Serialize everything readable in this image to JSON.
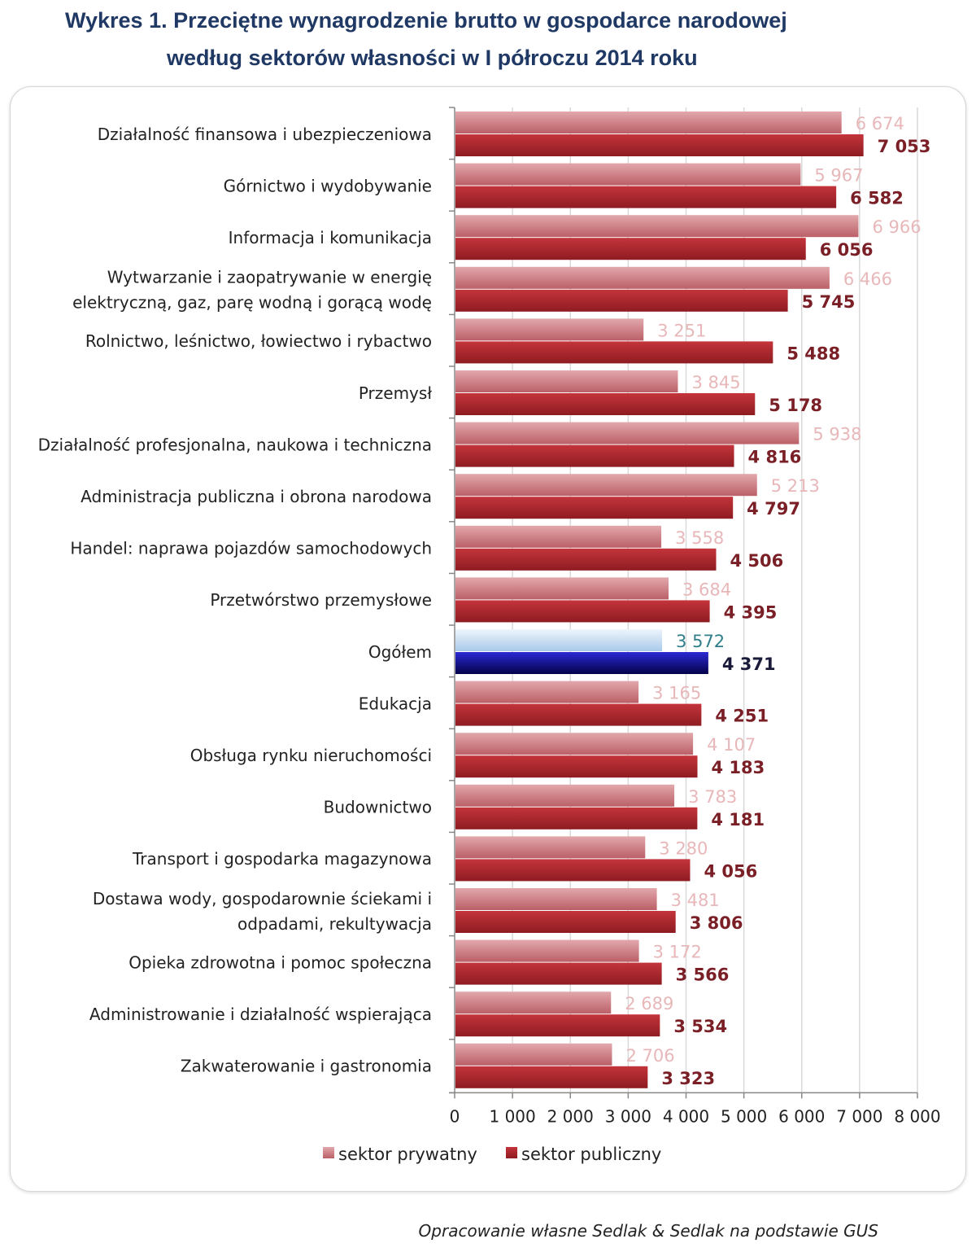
{
  "title_line1": "Wykres 1. Przeciętne wynagrodzenie brutto w gospodarce narodowej",
  "title_line2": "według sektorów własności w I półroczu 2014 roku",
  "footer": "Opracowanie własne Sedlak & Sedlak na podstawie GUS",
  "chart_data": {
    "type": "bar",
    "orientation": "horizontal",
    "title": "Wykres 1. Przeciętne wynagrodzenie brutto w gospodarce narodowej według sektorów własności w I półroczu 2014 roku",
    "categories": [
      [
        "Działalność finansowa i ubezpieczeniowa"
      ],
      [
        "Górnictwo i wydobywanie"
      ],
      [
        "Informacja i komunikacja"
      ],
      [
        "Wytwarzanie i zaopatrywanie  w energię",
        "elektryczną, gaz, parę wodną i gorącą wodę"
      ],
      [
        "Rolnictwo, leśnictwo, łowiectwo  i rybactwo"
      ],
      [
        "Przemysł"
      ],
      [
        "Działalność  profesjonalna, naukowa i techniczna"
      ],
      [
        "Administracja publiczna i obrona narodowa"
      ],
      [
        "Handel: naprawa pojazdów  samochodowych"
      ],
      [
        "Przetwórstwo przemysłowe"
      ],
      [
        "Ogółem"
      ],
      [
        "Edukacja"
      ],
      [
        "Obsługa rynku nieruchomości"
      ],
      [
        "Budownictwo"
      ],
      [
        "Transport i gospodarka magazynowa"
      ],
      [
        "Dostawa wody, gospodarownie ściekami i",
        "odpadami, rekultywacja"
      ],
      [
        "Opieka zdrowotna i pomoc społeczna"
      ],
      [
        "Administrowanie i działalność  wspierająca"
      ],
      [
        "Zakwaterowanie  i gastronomia"
      ]
    ],
    "series": [
      {
        "name": "sektor prywatny",
        "color": "#c9737a",
        "values": [
          6674,
          5967,
          6966,
          6466,
          3251,
          3845,
          5938,
          5213,
          3558,
          3684,
          3572,
          3165,
          4107,
          3783,
          3280,
          3481,
          3172,
          2689,
          2706
        ],
        "labels": [
          "6 674",
          "5 967",
          "6 966",
          "6 466",
          "3 251",
          "3 845",
          "5 938",
          "5 213",
          "3 558",
          "3 684",
          "3 572",
          "3 165",
          "4 107",
          "3 783",
          "3 280",
          "3 481",
          "3 172",
          "2 689",
          "2 706"
        ]
      },
      {
        "name": "sektor publiczny",
        "color": "#a4262c",
        "values": [
          7053,
          6582,
          6056,
          5745,
          5488,
          5178,
          4816,
          4797,
          4506,
          4395,
          4371,
          4251,
          4183,
          4181,
          4056,
          3806,
          3566,
          3534,
          3323
        ],
        "labels": [
          "7 053",
          "6 582",
          "6 056",
          "5 745",
          "5 488",
          "5 178",
          "4 816",
          "4 797",
          "4 506",
          "4 395",
          "4 371",
          "4 251",
          "4 183",
          "4 181",
          "4 056",
          "3 806",
          "3 566",
          "3 534",
          "3 323"
        ]
      }
    ],
    "highlight_category_index": 10,
    "highlight_colors": {
      "private": "#c6dcf2",
      "public": "#1a12b8"
    },
    "x_ticks": [
      "0",
      "1 000",
      "2 000",
      "3 000",
      "4 000",
      "5 000",
      "6 000",
      "7 000",
      "8 000"
    ],
    "xlim": [
      0,
      8000
    ],
    "grid": true,
    "legend_position": "bottom"
  }
}
